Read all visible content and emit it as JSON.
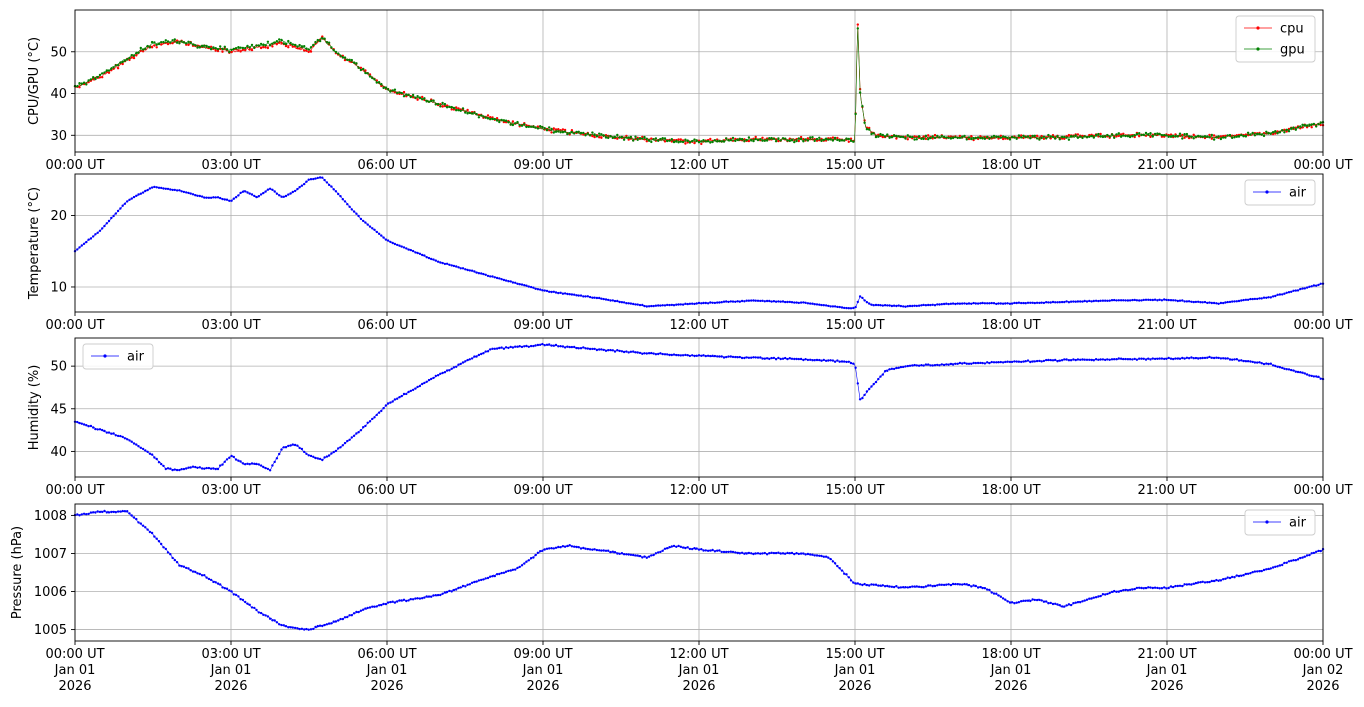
{
  "chart_data": [
    {
      "type": "line",
      "ylabel": "CPU/GPU (°C)",
      "xlim": [
        "00:00 UT",
        "00:00 UT"
      ],
      "ylim": [
        26,
        60
      ],
      "yticks": [
        30,
        40,
        50
      ],
      "xticks": [
        "00:00 UT",
        "03:00 UT",
        "06:00 UT",
        "09:00 UT",
        "12:00 UT",
        "15:00 UT",
        "18:00 UT",
        "21:00 UT",
        "00:00 UT"
      ],
      "grid": true,
      "legend": "top-right",
      "x_hours": [
        0,
        0.5,
        1,
        1.5,
        2,
        2.5,
        3,
        3.5,
        4,
        4.5,
        4.75,
        5,
        5.5,
        6,
        7,
        8,
        9,
        10,
        11,
        12,
        13,
        14,
        14.9,
        15,
        15.05,
        15.1,
        15.2,
        15.4,
        16,
        17,
        18,
        19,
        20,
        21,
        22,
        23,
        24
      ],
      "series": [
        {
          "name": "cpu",
          "color": "#ff0000",
          "values": [
            41.5,
            44,
            48,
            51.5,
            52.5,
            51,
            50,
            51,
            52,
            50,
            53.5,
            50,
            46,
            41,
            37.5,
            34,
            31.5,
            30,
            29,
            28.5,
            29,
            29,
            29,
            28.5,
            58,
            40,
            32,
            30,
            29.5,
            29.5,
            29.5,
            29.5,
            30,
            30,
            29.5,
            30.5,
            33
          ]
        },
        {
          "name": "gpu",
          "color": "#008000",
          "values": [
            41.5,
            44.5,
            48.5,
            52,
            52.5,
            51,
            50.5,
            51.5,
            52.5,
            50.5,
            53.5,
            50,
            46,
            41,
            37.5,
            34,
            31.5,
            30,
            29,
            28.5,
            29,
            29,
            29,
            28.5,
            57,
            40,
            32,
            30,
            29.5,
            29.5,
            29.5,
            29.5,
            30,
            30,
            29.5,
            30.5,
            33
          ]
        }
      ]
    },
    {
      "type": "line",
      "ylabel": "Temperature (°C)",
      "ylim": [
        6.5,
        25.8
      ],
      "yticks": [
        10,
        20
      ],
      "xticks": [
        "00:00 UT",
        "03:00 UT",
        "06:00 UT",
        "09:00 UT",
        "12:00 UT",
        "15:00 UT",
        "18:00 UT",
        "21:00 UT",
        "00:00 UT"
      ],
      "grid": true,
      "legend": "top-right",
      "x_hours": [
        0,
        0.5,
        1,
        1.5,
        2,
        2.5,
        2.75,
        3,
        3.25,
        3.5,
        3.75,
        4,
        4.25,
        4.5,
        4.75,
        5,
        5.5,
        6,
        7,
        8,
        9,
        10,
        11,
        12,
        13,
        14,
        14.9,
        15,
        15.1,
        15.3,
        16,
        17,
        18,
        19,
        20,
        21,
        22,
        23,
        24
      ],
      "series": [
        {
          "name": "air",
          "color": "#0000ff",
          "values": [
            15,
            18,
            22,
            24,
            23.5,
            22.5,
            22.5,
            22,
            23.5,
            22.5,
            23.8,
            22.5,
            23.5,
            25,
            25.3,
            23.5,
            19.5,
            16.5,
            13.5,
            11.5,
            9.5,
            8.5,
            7.3,
            7.7,
            8.1,
            7.8,
            7,
            7,
            8.7,
            7.5,
            7.3,
            7.7,
            7.7,
            7.9,
            8.1,
            8.2,
            7.7,
            8.6,
            10.5
          ]
        }
      ]
    },
    {
      "type": "line",
      "ylabel": "Humidity (%)",
      "ylim": [
        37,
        53.3
      ],
      "yticks": [
        40,
        45,
        50
      ],
      "xticks": [
        "00:00 UT",
        "03:00 UT",
        "06:00 UT",
        "09:00 UT",
        "12:00 UT",
        "15:00 UT",
        "18:00 UT",
        "21:00 UT",
        "00:00 UT"
      ],
      "grid": true,
      "legend": "top-left",
      "x_hours": [
        0,
        0.5,
        1,
        1.5,
        1.75,
        2,
        2.25,
        2.5,
        2.75,
        3,
        3.25,
        3.5,
        3.75,
        4,
        4.25,
        4.5,
        4.75,
        5,
        5.5,
        6,
        7,
        8,
        9,
        10,
        11,
        12,
        13,
        14,
        14.9,
        15,
        15.1,
        15.3,
        15.6,
        16,
        17,
        18,
        19,
        20,
        21,
        22,
        23,
        24
      ],
      "series": [
        {
          "name": "air",
          "color": "#0000ff",
          "values": [
            43.5,
            42.5,
            41.5,
            39.5,
            38,
            37.8,
            38.2,
            38,
            38,
            39.5,
            38.5,
            38.5,
            37.8,
            40.5,
            40.8,
            39.5,
            39,
            40,
            42.5,
            45.5,
            49,
            52,
            52.5,
            52,
            51.5,
            51.2,
            51,
            50.8,
            50.5,
            50.2,
            46,
            47.5,
            49.5,
            50,
            50.3,
            50.5,
            50.7,
            50.8,
            50.9,
            51,
            50.2,
            48.5
          ]
        }
      ]
    },
    {
      "type": "line",
      "ylabel": "Pressure (hPa)",
      "ylim": [
        1004.7,
        1008.3
      ],
      "yticks": [
        1005,
        1006,
        1007,
        1008
      ],
      "xticks": [
        "00:00 UT\nJan 01\n2026",
        "03:00 UT\nJan 01\n2026",
        "06:00 UT\nJan 01\n2026",
        "09:00 UT\nJan 01\n2026",
        "12:00 UT\nJan 01\n2026",
        "15:00 UT\nJan 01\n2026",
        "18:00 UT\nJan 01\n2026",
        "21:00 UT\nJan 01\n2026",
        "00:00 UT\nJan 02\n2026"
      ],
      "grid": true,
      "legend": "top-right",
      "x_hours": [
        0,
        0.5,
        1,
        1.5,
        2,
        2.5,
        3,
        3.5,
        4,
        4.5,
        5,
        5.5,
        6,
        7,
        8,
        8.5,
        9,
        9.5,
        10,
        11,
        11.5,
        12,
        13,
        14,
        14.5,
        15,
        16,
        17,
        17.5,
        18,
        18.5,
        19,
        19.5,
        20,
        20.5,
        21,
        22,
        23,
        24
      ],
      "series": [
        {
          "name": "air",
          "color": "#0000ff",
          "values": [
            1008,
            1008.1,
            1008.1,
            1007.5,
            1006.7,
            1006.4,
            1006,
            1005.5,
            1005.1,
            1005,
            1005.2,
            1005.5,
            1005.7,
            1005.9,
            1006.4,
            1006.6,
            1007.1,
            1007.2,
            1007.1,
            1006.9,
            1007.2,
            1007.1,
            1007,
            1007,
            1006.9,
            1006.2,
            1006.1,
            1006.2,
            1006.1,
            1005.7,
            1005.8,
            1005.6,
            1005.8,
            1006,
            1006.1,
            1006.1,
            1006.3,
            1006.6,
            1007.1
          ]
        }
      ]
    }
  ]
}
